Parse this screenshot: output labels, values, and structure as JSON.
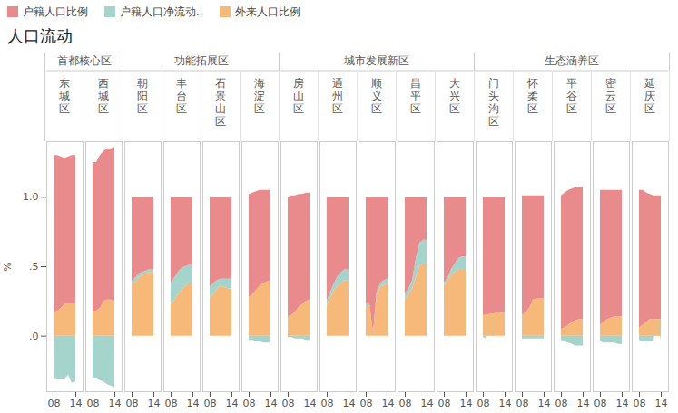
{
  "chart_data": {
    "type": "area",
    "title": "人口流动",
    "stacked": true,
    "y_label": "%",
    "x": [
      8,
      9,
      10,
      11,
      12,
      13,
      14
    ],
    "xlim": [
      8,
      14
    ],
    "xticks": [
      {
        "value": 8,
        "label": "08"
      },
      {
        "value": 14,
        "label": "14"
      }
    ],
    "ylim": [
      -0.4,
      1.4
    ],
    "yticks": [
      {
        "value": 0,
        "label": ".0"
      },
      {
        "value": 0.5,
        "label": ".5"
      },
      {
        "value": 1,
        "label": "1.0"
      }
    ],
    "groups": [
      {
        "name": "首都核心区",
        "districts": [
          "东城区",
          "西城区"
        ]
      },
      {
        "name": "功能拓展区",
        "districts": [
          "朝阳区",
          "丰台区",
          "石景山区",
          "海淀区"
        ]
      },
      {
        "name": "城市发展新区",
        "districts": [
          "房山区",
          "通州区",
          "顺义区",
          "昌平区",
          "大兴区"
        ]
      },
      {
        "name": "生态涵养区",
        "districts": [
          "门头沟区",
          "怀柔区",
          "平谷区",
          "密云区",
          "延庆区"
        ]
      }
    ],
    "series": [
      {
        "name": "户籍人口比例",
        "color": "#e98b8d",
        "values": [
          [
            1.13,
            1.12,
            1.09,
            1.05,
            1.06,
            1.07,
            1.07
          ],
          [
            1.07,
            1.07,
            1.1,
            1.08,
            1.09,
            1.09,
            1.11
          ],
          [
            0.61,
            0.58,
            0.55,
            0.54,
            0.53,
            0.52,
            0.52
          ],
          [
            0.62,
            0.58,
            0.54,
            0.51,
            0.5,
            0.49,
            0.49
          ],
          [
            0.65,
            0.62,
            0.6,
            0.59,
            0.59,
            0.59,
            0.59
          ],
          [
            0.74,
            0.73,
            0.71,
            0.69,
            0.67,
            0.66,
            0.65
          ],
          [
            0.86,
            0.86,
            0.84,
            0.81,
            0.79,
            0.78,
            0.77
          ],
          [
            0.75,
            0.68,
            0.62,
            0.57,
            0.54,
            0.52,
            0.52
          ],
          [
            0.77,
            0.77,
            0.98,
            0.68,
            0.62,
            0.6,
            0.59
          ],
          [
            0.7,
            0.66,
            0.6,
            0.45,
            0.33,
            0.31,
            0.31
          ],
          [
            0.62,
            0.58,
            0.52,
            0.48,
            0.44,
            0.43,
            0.43
          ],
          [
            0.85,
            0.85,
            0.84,
            0.84,
            0.83,
            0.83,
            0.83
          ],
          [
            0.86,
            0.84,
            0.81,
            0.75,
            0.74,
            0.74,
            0.74
          ],
          [
            0.96,
            0.97,
            0.97,
            0.96,
            0.96,
            0.95,
            0.95
          ],
          [
            0.97,
            0.95,
            0.93,
            0.92,
            0.91,
            0.91,
            0.91
          ],
          [
            0.99,
            0.97,
            0.93,
            0.9,
            0.89,
            0.89,
            0.89
          ]
        ]
      },
      {
        "name": "户籍人口净流动..",
        "color": "#a4d4cc",
        "values": [
          [
            -0.3,
            -0.31,
            -0.31,
            -0.31,
            -0.28,
            -0.34,
            -0.33
          ],
          [
            -0.3,
            -0.3,
            -0.32,
            -0.33,
            -0.35,
            -0.36,
            -0.37
          ],
          [
            0.02,
            0.03,
            0.03,
            0.02,
            0.02,
            0.02,
            0.02
          ],
          [
            0.15,
            0.16,
            0.16,
            0.16,
            0.14,
            0.13,
            0.13
          ],
          [
            0.08,
            0.08,
            0.06,
            0.05,
            0.06,
            0.07,
            0.07
          ],
          [
            -0.03,
            -0.03,
            -0.04,
            -0.04,
            -0.05,
            -0.05,
            -0.05
          ],
          [
            -0.01,
            -0.01,
            -0.02,
            -0.02,
            -0.02,
            -0.03,
            -0.03
          ],
          [
            0.03,
            0.04,
            0.05,
            0.07,
            0.08,
            0.08,
            0.08
          ],
          [
            0.02,
            0.01,
            0.0,
            0.02,
            0.03,
            0.03,
            0.03
          ],
          [
            0.04,
            0.04,
            0.06,
            0.13,
            0.17,
            0.17,
            0.18
          ],
          [
            0.02,
            0.02,
            0.04,
            0.06,
            0.08,
            0.09,
            0.09
          ],
          [
            -0.01,
            -0.02,
            0.0,
            -0.01,
            0.0,
            0.0,
            0.0
          ],
          [
            -0.02,
            -0.02,
            -0.02,
            -0.02,
            -0.02,
            -0.02,
            -0.02
          ],
          [
            -0.03,
            -0.04,
            -0.05,
            -0.06,
            -0.07,
            -0.07,
            -0.07
          ],
          [
            -0.04,
            -0.05,
            -0.05,
            -0.05,
            -0.05,
            -0.06,
            -0.06
          ],
          [
            -0.03,
            -0.04,
            -0.04,
            -0.04,
            -0.03,
            0.0,
            -0.03
          ]
        ]
      },
      {
        "name": "外来人口比例",
        "color": "#f7b97a",
        "values": [
          [
            0.17,
            0.18,
            0.2,
            0.23,
            0.23,
            0.23,
            0.23
          ],
          [
            0.18,
            0.18,
            0.2,
            0.25,
            0.26,
            0.26,
            0.25
          ],
          [
            0.37,
            0.39,
            0.42,
            0.44,
            0.45,
            0.46,
            0.46
          ],
          [
            0.23,
            0.26,
            0.3,
            0.33,
            0.36,
            0.38,
            0.38
          ],
          [
            0.27,
            0.3,
            0.34,
            0.36,
            0.35,
            0.34,
            0.34
          ],
          [
            0.28,
            0.3,
            0.33,
            0.36,
            0.38,
            0.39,
            0.4
          ],
          [
            0.14,
            0.15,
            0.17,
            0.21,
            0.23,
            0.25,
            0.26
          ],
          [
            0.22,
            0.28,
            0.33,
            0.36,
            0.38,
            0.4,
            0.4
          ],
          [
            0.21,
            0.22,
            0.02,
            0.3,
            0.35,
            0.37,
            0.38
          ],
          [
            0.26,
            0.3,
            0.34,
            0.42,
            0.5,
            0.52,
            0.51
          ],
          [
            0.36,
            0.4,
            0.44,
            0.46,
            0.48,
            0.48,
            0.48
          ],
          [
            0.15,
            0.15,
            0.16,
            0.16,
            0.17,
            0.17,
            0.17
          ],
          [
            0.15,
            0.17,
            0.2,
            0.26,
            0.27,
            0.27,
            0.27
          ],
          [
            0.05,
            0.06,
            0.08,
            0.1,
            0.11,
            0.12,
            0.12
          ],
          [
            0.08,
            0.1,
            0.12,
            0.13,
            0.14,
            0.14,
            0.14
          ],
          [
            0.06,
            0.08,
            0.1,
            0.12,
            0.12,
            0.12,
            0.12
          ]
        ]
      }
    ]
  }
}
